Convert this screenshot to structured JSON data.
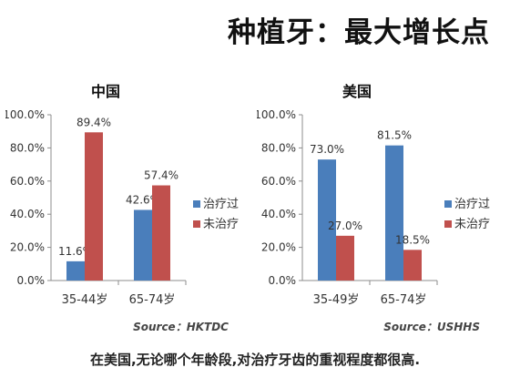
{
  "headline": "种植牙：最大增长点",
  "caption": "在美国,无论哪个年龄段,对治疗牙齿的重视程度都很高.",
  "colors": {
    "treated": "#4A7EBB",
    "untreated": "#C0504D",
    "axis": "#8c8c8c",
    "grid": "#d9d9d9"
  },
  "chart_data": [
    {
      "type": "bar",
      "title": "中国",
      "categories": [
        "35-44岁",
        "65-74岁"
      ],
      "series": [
        {
          "name": "治疗过",
          "values": [
            11.6,
            42.6
          ]
        },
        {
          "name": "未治疗",
          "values": [
            89.4,
            57.4
          ]
        }
      ],
      "data_labels": [
        [
          "11.6%",
          "42.6%"
        ],
        [
          "89.4%",
          "57.4%"
        ]
      ],
      "yticks": [
        "0.0%",
        "20.0%",
        "40.0%",
        "60.0%",
        "80.0%",
        "100.0%"
      ],
      "ylim": [
        0,
        100
      ],
      "legend": "right",
      "grid": false,
      "source": "Source：HKTDC"
    },
    {
      "type": "bar",
      "title": "美国",
      "categories": [
        "35-49岁",
        "65-74岁"
      ],
      "series": [
        {
          "name": "治疗过",
          "values": [
            73.0,
            81.5
          ]
        },
        {
          "name": "未治疗",
          "values": [
            27.0,
            18.5
          ]
        }
      ],
      "data_labels": [
        [
          "73.0%",
          "81.5%"
        ],
        [
          "27.0%",
          "18.5%"
        ]
      ],
      "yticks": [
        "0.0%",
        "20.0%",
        "40.0%",
        "60.0%",
        "80.0%",
        "100.0%"
      ],
      "ylim": [
        0,
        100
      ],
      "legend": "right",
      "grid": false,
      "source": "Source：USHHS"
    }
  ]
}
